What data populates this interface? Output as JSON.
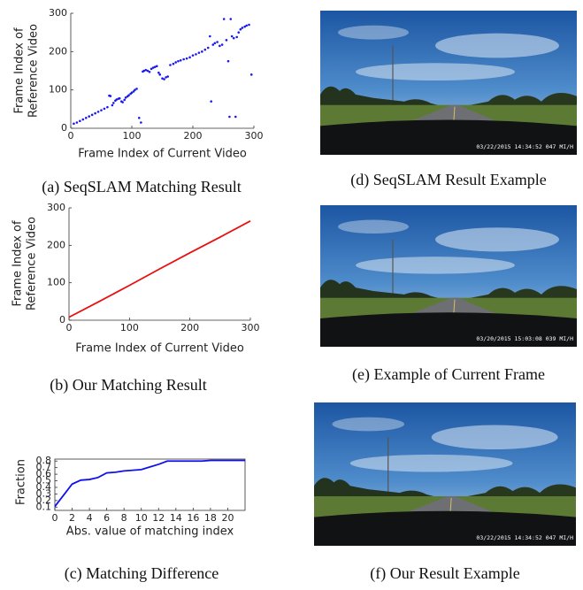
{
  "chart_data": [
    {
      "type": "scatter",
      "caption": "(a) SeqSLAM Matching Result",
      "xlabel": "Frame Index of Current Video",
      "ylabel": [
        "Frame Index of",
        "Reference Video"
      ],
      "color": "#1a1aee",
      "xlim": [
        0,
        300
      ],
      "ylim": [
        0,
        300
      ],
      "xticks": [
        0,
        100,
        200,
        300
      ],
      "yticks": [
        0,
        100,
        200,
        300
      ],
      "box": false,
      "x": [
        5,
        10,
        15,
        20,
        25,
        30,
        35,
        40,
        45,
        50,
        55,
        60,
        63,
        65,
        68,
        70,
        73,
        75,
        78,
        80,
        83,
        85,
        88,
        90,
        93,
        95,
        98,
        100,
        103,
        105,
        108,
        112,
        115,
        118,
        120,
        123,
        126,
        129,
        132,
        135,
        138,
        141,
        144,
        146,
        150,
        153,
        156,
        159,
        163,
        168,
        172,
        176,
        180,
        185,
        190,
        195,
        200,
        205,
        210,
        215,
        220,
        225,
        228,
        230,
        233,
        236,
        240,
        244,
        248,
        251,
        255,
        258,
        260,
        262,
        264,
        267,
        270,
        272,
        275,
        278,
        281,
        285,
        288,
        292,
        296
      ],
      "values": [
        12,
        15,
        19,
        23,
        27,
        31,
        35,
        39,
        43,
        47,
        51,
        55,
        85,
        84,
        60,
        66,
        72,
        75,
        77,
        78,
        70,
        68,
        74,
        80,
        83,
        86,
        90,
        93,
        96,
        100,
        103,
        27,
        15,
        148,
        150,
        152,
        150,
        147,
        155,
        158,
        160,
        162,
        145,
        140,
        130,
        128,
        133,
        135,
        165,
        168,
        172,
        175,
        177,
        180,
        182,
        185,
        190,
        193,
        197,
        200,
        205,
        210,
        240,
        70,
        218,
        222,
        225,
        215,
        218,
        285,
        230,
        175,
        30,
        285,
        240,
        235,
        30,
        238,
        250,
        258,
        262,
        265,
        268,
        270,
        140
      ]
    },
    {
      "type": "line",
      "caption": "(b) Our Matching Result",
      "xlabel": "Frame Index of Current Video",
      "ylabel": [
        "Frame Index of",
        "Reference Video"
      ],
      "color": "#e81010",
      "xlim": [
        0,
        300
      ],
      "ylim": [
        0,
        300
      ],
      "xticks": [
        0,
        100,
        200,
        300
      ],
      "yticks": [
        0,
        100,
        200,
        300
      ],
      "box": false,
      "x": [
        0,
        50,
        100,
        150,
        200,
        250,
        300
      ],
      "values": [
        8,
        50,
        93,
        137,
        180,
        222,
        265
      ]
    },
    {
      "type": "line",
      "caption": "(c) Matching Difference",
      "xlabel": "Abs. value of matching index",
      "ylabel": [
        "Fraction"
      ],
      "color": "#1010ee",
      "xlim": [
        0,
        22
      ],
      "ylim": [
        0.05,
        0.83
      ],
      "xticks": [
        0,
        2,
        4,
        6,
        8,
        10,
        12,
        14,
        16,
        18,
        20
      ],
      "yticks": [
        0.1,
        0.2,
        0.3,
        0.4,
        0.5,
        0.6,
        0.7,
        0.8
      ],
      "box": true,
      "x": [
        0,
        1,
        2,
        3,
        4,
        5,
        6,
        7,
        8,
        9,
        10,
        11,
        12,
        13,
        14,
        15,
        16,
        17,
        18,
        19,
        20,
        21,
        22
      ],
      "values": [
        0.11,
        0.28,
        0.45,
        0.51,
        0.52,
        0.55,
        0.62,
        0.63,
        0.65,
        0.66,
        0.67,
        0.71,
        0.75,
        0.8,
        0.8,
        0.8,
        0.8,
        0.8,
        0.81,
        0.81,
        0.81,
        0.81,
        0.81
      ]
    }
  ],
  "images": [
    {
      "caption": "(d) SeqSLAM Result Example",
      "timestamp": "03/22/2015 14:34:52 047 MI/H"
    },
    {
      "caption": "(e) Example of Current Frame",
      "timestamp": "03/20/2015 15:03:08 039 MI/H"
    },
    {
      "caption": "(f) Our Result Example",
      "timestamp": "03/22/2015 14:34:52 047 MI/H"
    }
  ]
}
